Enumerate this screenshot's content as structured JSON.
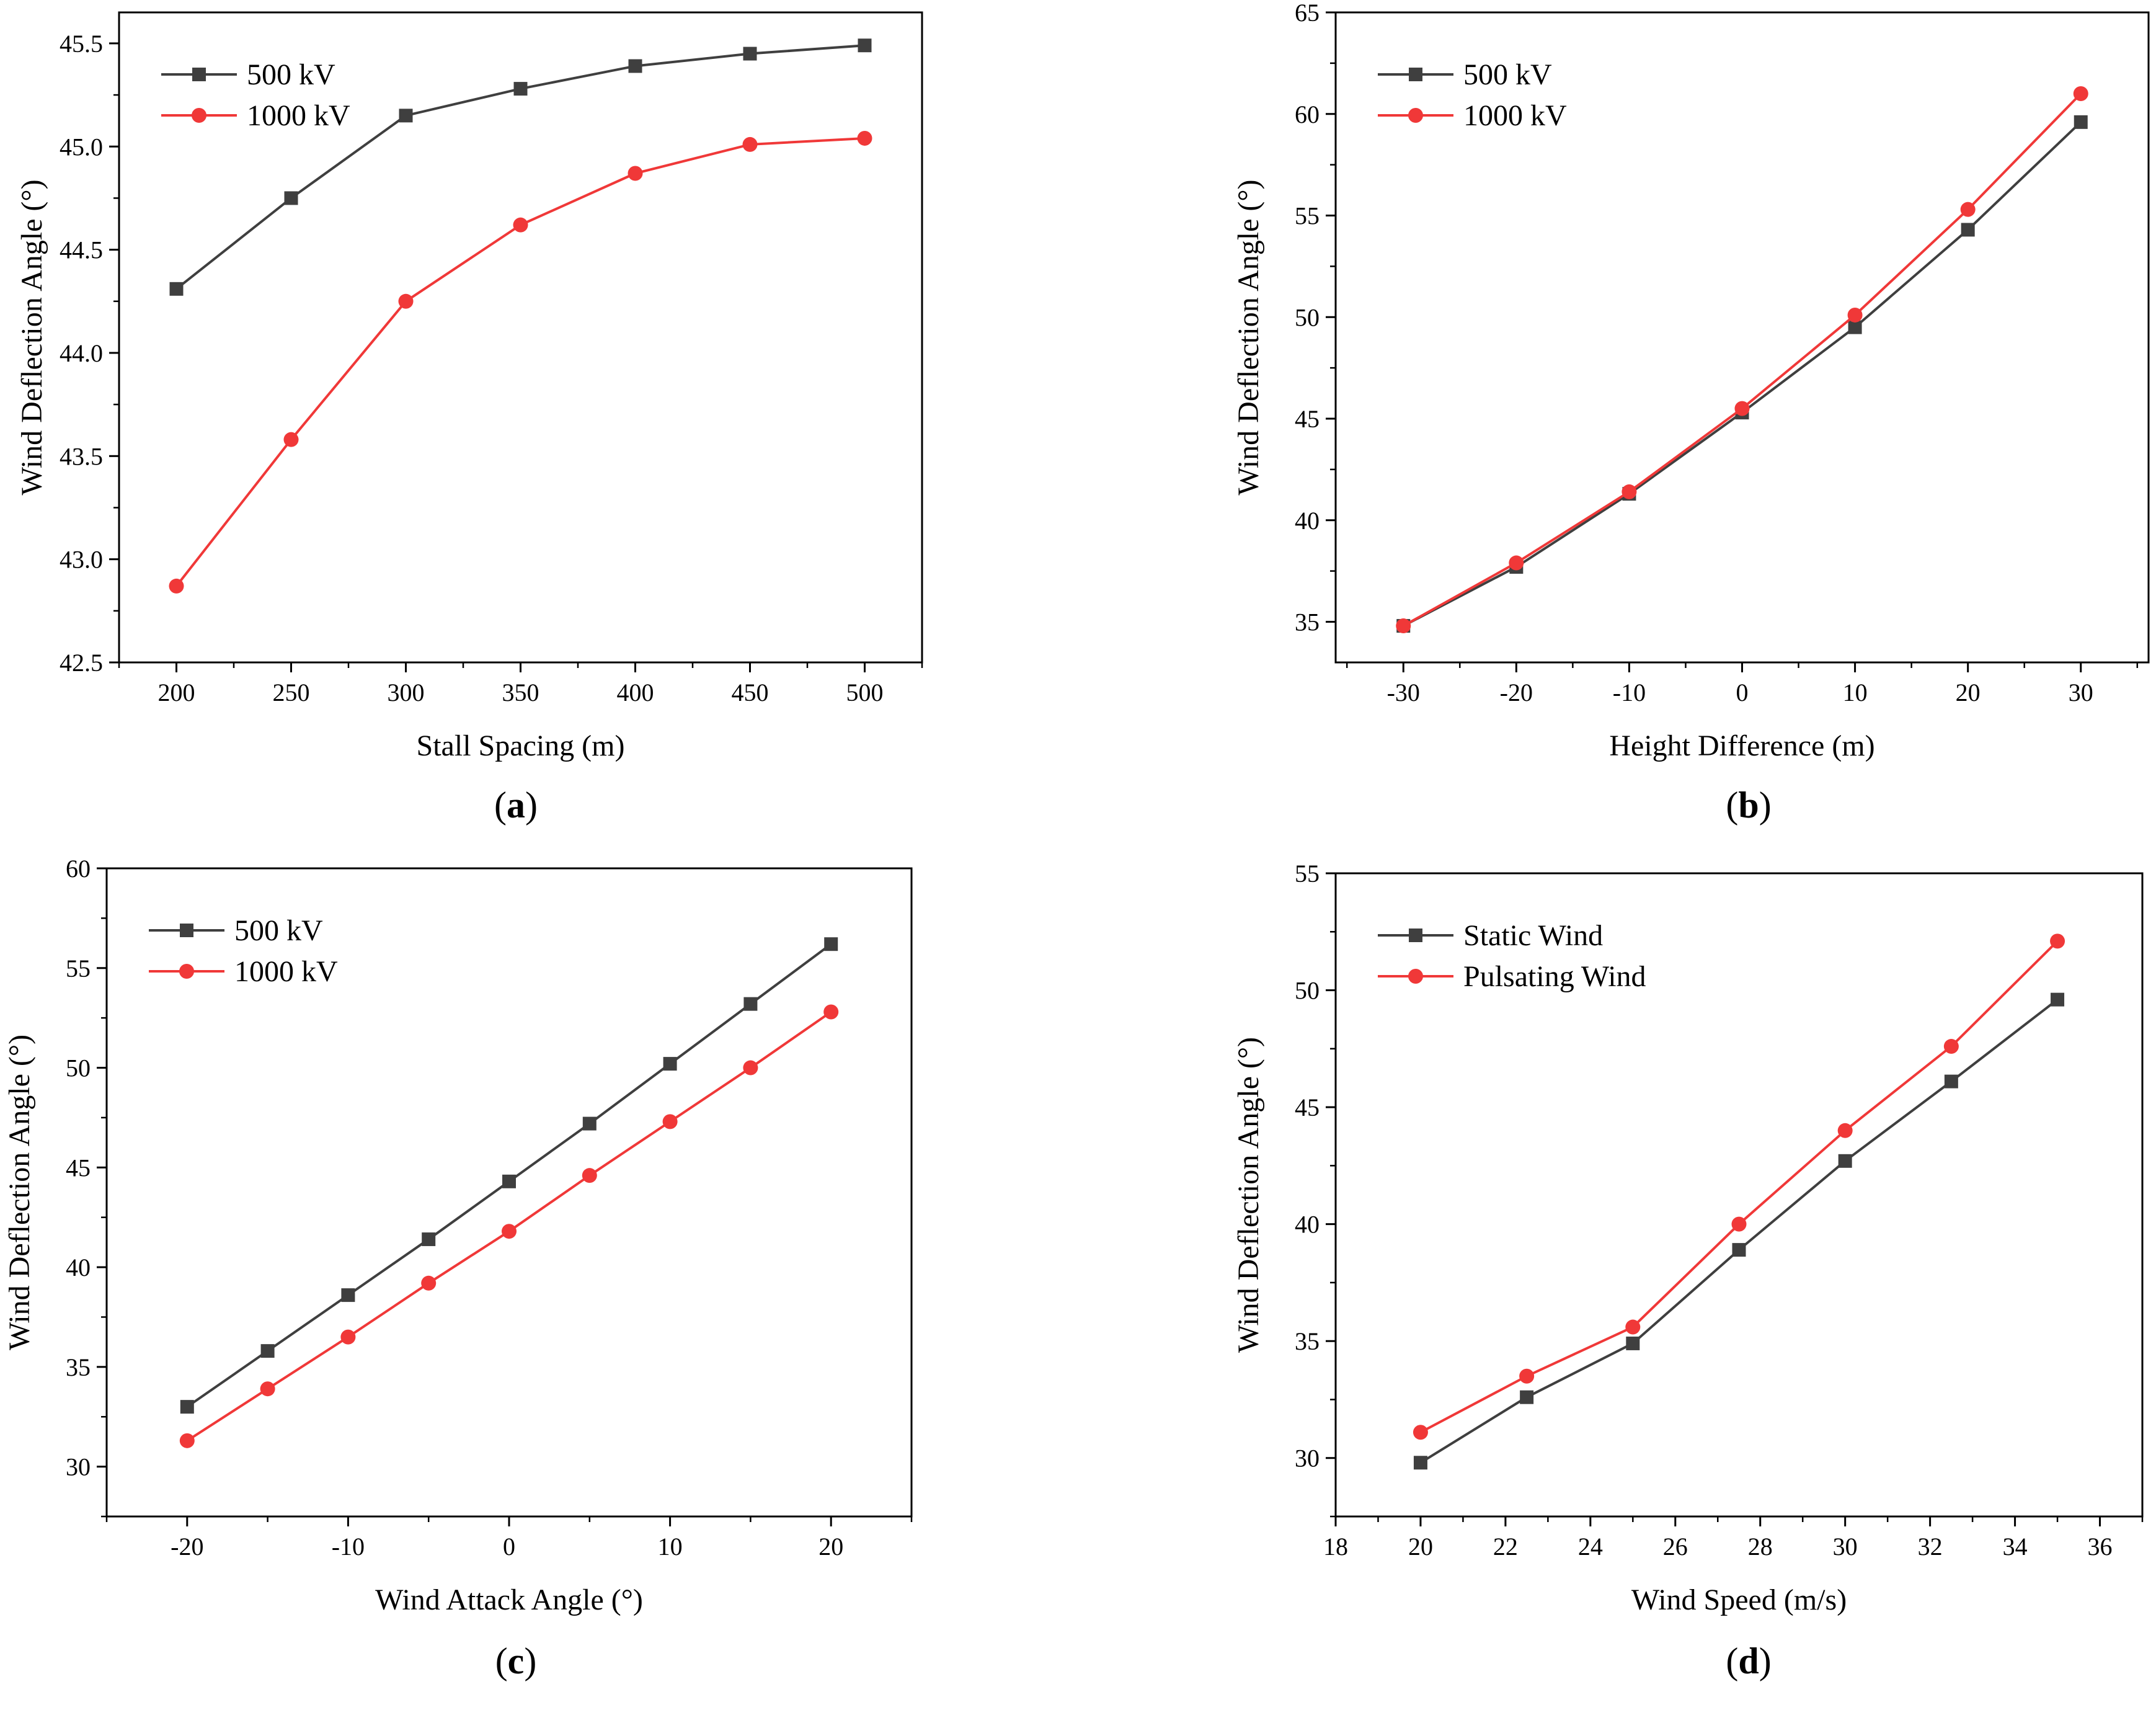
{
  "figure": {
    "colors": {
      "series_a": "#3f3f3f",
      "series_b": "#f03838",
      "axis": "#000000"
    }
  },
  "chart_data": [
    {
      "type": "line",
      "panel_label": "a",
      "title": "",
      "xlabel": "Stall Spacing (m)",
      "ylabel": "Wind Deflection Angle (°)",
      "xlim": [
        175,
        525
      ],
      "ylim": [
        42.5,
        45.65
      ],
      "xticks": [
        200,
        250,
        300,
        350,
        400,
        450,
        500
      ],
      "yticks": [
        42.5,
        43.0,
        43.5,
        44.0,
        44.5,
        45.0,
        45.5
      ],
      "xtick_labels": [
        "200",
        "250",
        "300",
        "350",
        "400",
        "450",
        "500"
      ],
      "ytick_labels": [
        "42.5",
        "43.0",
        "43.5",
        "44.0",
        "44.5",
        "45.0",
        "45.5"
      ],
      "legend_position": "top-left",
      "x": [
        200,
        250,
        300,
        350,
        400,
        450,
        500
      ],
      "series": [
        {
          "name": "500 kV",
          "marker": "square",
          "values": [
            44.31,
            44.75,
            45.15,
            45.28,
            45.39,
            45.45,
            45.49
          ]
        },
        {
          "name": "1000 kV",
          "marker": "circle",
          "values": [
            42.87,
            43.58,
            44.25,
            44.62,
            44.87,
            45.01,
            45.04
          ]
        }
      ]
    },
    {
      "type": "line",
      "panel_label": "b",
      "title": "",
      "xlabel": "Height Difference (m)",
      "ylabel": "Wind Deflection Angle (°)",
      "xlim": [
        -36,
        36
      ],
      "ylim": [
        33,
        65
      ],
      "xticks": [
        -30,
        -20,
        -10,
        0,
        10,
        20,
        30
      ],
      "yticks": [
        35,
        40,
        45,
        50,
        55,
        60,
        65
      ],
      "xtick_labels": [
        "-30",
        "-20",
        "-10",
        "0",
        "10",
        "20",
        "30"
      ],
      "ytick_labels": [
        "35",
        "40",
        "45",
        "50",
        "55",
        "60",
        "65"
      ],
      "legend_position": "top-left",
      "x": [
        -30,
        -20,
        -10,
        0,
        10,
        20,
        30
      ],
      "series": [
        {
          "name": "500 kV",
          "marker": "square",
          "values": [
            34.8,
            37.7,
            41.3,
            45.3,
            49.5,
            54.3,
            59.6
          ]
        },
        {
          "name": "1000 kV",
          "marker": "circle",
          "values": [
            34.8,
            37.9,
            41.4,
            45.5,
            50.1,
            55.3,
            61.0
          ]
        }
      ]
    },
    {
      "type": "line",
      "panel_label": "c",
      "title": "",
      "xlabel": "Wind Attack Angle (°)",
      "ylabel": "Wind Deflection Angle (°)",
      "xlim": [
        -25,
        25
      ],
      "ylim": [
        27.5,
        60
      ],
      "xticks": [
        -20,
        -10,
        0,
        10,
        20
      ],
      "yticks": [
        30,
        35,
        40,
        45,
        50,
        55,
        60
      ],
      "xtick_labels": [
        "-20",
        "-10",
        "0",
        "10",
        "20"
      ],
      "ytick_labels": [
        "30",
        "35",
        "40",
        "45",
        "50",
        "55",
        "60"
      ],
      "legend_position": "top-left",
      "x": [
        -20,
        -15,
        -10,
        -5,
        0,
        5,
        10,
        15,
        20
      ],
      "series": [
        {
          "name": "500 kV",
          "marker": "square",
          "values": [
            33.0,
            35.8,
            38.6,
            41.4,
            44.3,
            47.2,
            50.2,
            53.2,
            56.2
          ]
        },
        {
          "name": "1000 kV",
          "marker": "circle",
          "values": [
            31.3,
            33.9,
            36.5,
            39.2,
            41.8,
            44.6,
            47.3,
            50.0,
            52.8
          ]
        }
      ]
    },
    {
      "type": "line",
      "panel_label": "d",
      "title": "",
      "xlabel": "Wind Speed (m/s)",
      "ylabel": "Wind Deflection Angle (°)",
      "xlim": [
        18,
        37
      ],
      "ylim": [
        27.5,
        55
      ],
      "xticks": [
        18,
        20,
        22,
        24,
        26,
        28,
        30,
        32,
        34,
        36
      ],
      "yticks": [
        30,
        35,
        40,
        45,
        50,
        55
      ],
      "xtick_labels": [
        "18",
        "20",
        "22",
        "24",
        "26",
        "28",
        "30",
        "32",
        "34",
        "36"
      ],
      "ytick_labels": [
        "30",
        "35",
        "40",
        "45",
        "50",
        "55"
      ],
      "legend_position": "top-left",
      "x": [
        20,
        22.5,
        25,
        27.5,
        30,
        32.5,
        35
      ],
      "series": [
        {
          "name": "Static Wind",
          "marker": "square",
          "values": [
            29.8,
            32.6,
            34.9,
            38.9,
            42.7,
            46.1,
            49.6
          ]
        },
        {
          "name": "Pulsating Wind",
          "marker": "circle",
          "values": [
            31.1,
            33.5,
            35.6,
            40.0,
            44.0,
            47.6,
            52.1
          ]
        }
      ]
    }
  ]
}
